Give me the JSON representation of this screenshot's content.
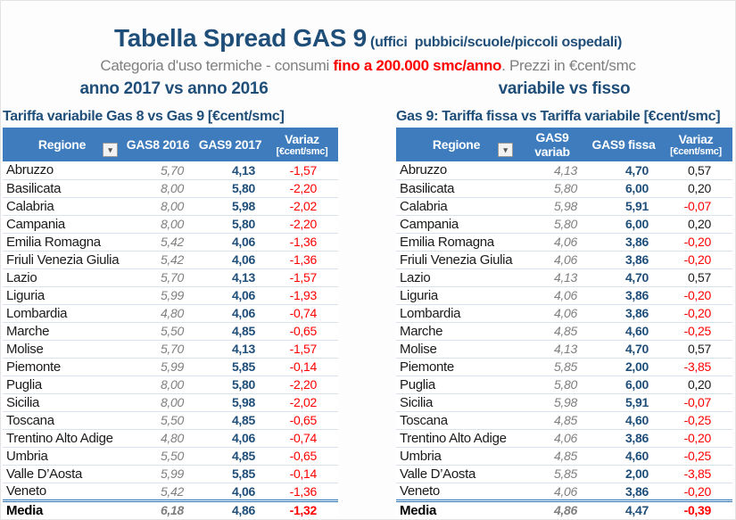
{
  "colors": {
    "accent_dark_blue": "#1f4e79",
    "header_bg_blue": "#3e7cbe",
    "highlight_red": "#ff0000",
    "muted_gray": "#7f7f7f",
    "row_divider": "#d9e2ec",
    "double_rule_blue": "#2e75b6"
  },
  "header": {
    "title": "Tabella Spread GAS 9",
    "title_suffix": " (uffici  pubbici/scuole/piccoli ospedali)",
    "subtitle_prefix": "Categoria d'uso termiche - consumi ",
    "subtitle_highlight": "fino a 200.000 smc/anno",
    "subtitle_suffix": ". Prezzi in €cent/smc",
    "left_heading": "anno 2017 vs anno 2016",
    "right_heading": "variabile vs fisso"
  },
  "left_table": {
    "title": "Tariffa variabile Gas 8 vs Gas 9 [€cent/smc]",
    "columns": {
      "region": "Regione",
      "col1": "GAS8 2016",
      "col2": "GAS9 2017",
      "variaz": "Variaz",
      "variaz_sub": "[€cent/smc]"
    },
    "filter_icon": "▾",
    "rows": [
      [
        "Abruzzo",
        "5,70",
        "4,13",
        "-1,57"
      ],
      [
        "Basilicata",
        "8,00",
        "5,80",
        "-2,20"
      ],
      [
        "Calabria",
        "8,00",
        "5,98",
        "-2,02"
      ],
      [
        "Campania",
        "8,00",
        "5,80",
        "-2,20"
      ],
      [
        "Emilia Romagna",
        "5,42",
        "4,06",
        "-1,36"
      ],
      [
        "Friuli Venezia Giulia",
        "5,42",
        "4,06",
        "-1,36"
      ],
      [
        "Lazio",
        "5,70",
        "4,13",
        "-1,57"
      ],
      [
        "Liguria",
        "5,99",
        "4,06",
        "-1,93"
      ],
      [
        "Lombardia",
        "4,80",
        "4,06",
        "-0,74"
      ],
      [
        "Marche",
        "5,50",
        "4,85",
        "-0,65"
      ],
      [
        "Molise",
        "5,70",
        "4,13",
        "-1,57"
      ],
      [
        "Piemonte",
        "5,99",
        "5,85",
        "-0,14"
      ],
      [
        "Puglia",
        "8,00",
        "5,80",
        "-2,20"
      ],
      [
        "Sicilia",
        "8,00",
        "5,98",
        "-2,02"
      ],
      [
        "Toscana",
        "5,50",
        "4,85",
        "-0,65"
      ],
      [
        "Trentino Alto Adige",
        "4,80",
        "4,06",
        "-0,74"
      ],
      [
        "Umbria",
        "5,50",
        "4,85",
        "-0,65"
      ],
      [
        "Valle D’Aosta",
        "5,99",
        "5,85",
        "-0,14"
      ],
      [
        "Veneto",
        "5,42",
        "4,06",
        "-1,36"
      ]
    ],
    "media": {
      "label": "Media",
      "v1": "6,18",
      "v2": "4,86",
      "variaz": "-1,32"
    }
  },
  "right_table": {
    "title": "Gas 9: Tariffa fissa vs Tariffa variabile [€cent/smc]",
    "columns": {
      "region": "Regione",
      "col1": "GAS9 variab",
      "col2": "GAS9 fissa",
      "variaz": "Variaz",
      "variaz_sub": "[€cent/smc]"
    },
    "filter_icon": "▾",
    "rows": [
      [
        "Abruzzo",
        "4,13",
        "4,70",
        "0,57"
      ],
      [
        "Basilicata",
        "5,80",
        "6,00",
        "0,20"
      ],
      [
        "Calabria",
        "5,98",
        "5,91",
        "-0,07"
      ],
      [
        "Campania",
        "5,80",
        "6,00",
        "0,20"
      ],
      [
        "Emilia Romagna",
        "4,06",
        "3,86",
        "-0,20"
      ],
      [
        "Friuli Venezia Giulia",
        "4,06",
        "3,86",
        "-0,20"
      ],
      [
        "Lazio",
        "4,13",
        "4,70",
        "0,57"
      ],
      [
        "Liguria",
        "4,06",
        "3,86",
        "-0,20"
      ],
      [
        "Lombardia",
        "4,06",
        "3,86",
        "-0,20"
      ],
      [
        "Marche",
        "4,85",
        "4,60",
        "-0,25"
      ],
      [
        "Molise",
        "4,13",
        "4,70",
        "0,57"
      ],
      [
        "Piemonte",
        "5,85",
        "2,00",
        "-3,85"
      ],
      [
        "Puglia",
        "5,80",
        "6,00",
        "0,20"
      ],
      [
        "Sicilia",
        "5,98",
        "5,91",
        "-0,07"
      ],
      [
        "Toscana",
        "4,85",
        "4,60",
        "-0,25"
      ],
      [
        "Trentino Alto Adige",
        "4,06",
        "3,86",
        "-0,20"
      ],
      [
        "Umbria",
        "4,85",
        "4,60",
        "-0,25"
      ],
      [
        "Valle D’Aosta",
        "5,85",
        "2,00",
        "-3,85"
      ],
      [
        "Veneto",
        "4,06",
        "3,86",
        "-0,20"
      ]
    ],
    "media": {
      "label": "Media",
      "v1": "4,86",
      "v2": "4,47",
      "variaz": "-0,39"
    }
  }
}
